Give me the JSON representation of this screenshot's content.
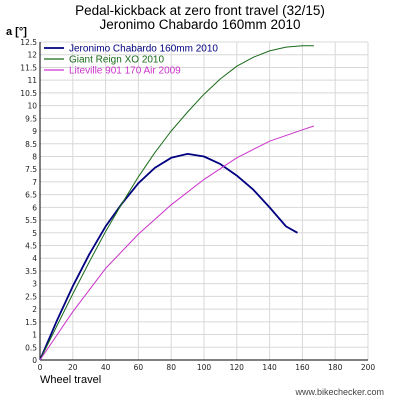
{
  "chart_data": {
    "type": "line",
    "title": "Pedal-kickback at zero front travel (32/15)",
    "subtitle": "Jeronimo Chabardo 160mm 2010",
    "ylabel": "a [°]",
    "xlabel": "Wheel travel",
    "xlim": [
      0,
      200
    ],
    "ylim": [
      0,
      12.5
    ],
    "x_ticks": [
      "0",
      "20",
      "40",
      "60",
      "80",
      "100",
      "120",
      "140",
      "160",
      "180",
      "200"
    ],
    "y_ticks": [
      "0",
      "0.5",
      "1",
      "1.5",
      "2",
      "2.5",
      "3",
      "3.5",
      "4",
      "4.5",
      "5",
      "5.5",
      "6",
      "6.5",
      "7",
      "7.5",
      "8",
      "8.5",
      "9",
      "9.5",
      "10",
      "10.5",
      "11",
      "11.5",
      "12",
      "12.5"
    ],
    "grid": true,
    "legend_position": "top-left",
    "series": [
      {
        "name": "Jeronimo Chabardo 160mm 2010",
        "color": "#000080",
        "x": [
          0,
          10,
          20,
          30,
          40,
          50,
          60,
          70,
          80,
          90,
          100,
          110,
          120,
          130,
          140,
          150,
          157
        ],
        "y": [
          0,
          1.5,
          2.9,
          4.15,
          5.25,
          6.15,
          6.95,
          7.55,
          7.95,
          8.1,
          8.0,
          7.7,
          7.25,
          6.7,
          6.0,
          5.25,
          5.0
        ]
      },
      {
        "name": "Giant Reign XO 2010",
        "color": "#1a6b1a",
        "x": [
          0,
          10,
          20,
          30,
          40,
          50,
          60,
          70,
          80,
          90,
          100,
          110,
          120,
          130,
          140,
          150,
          160,
          167
        ],
        "y": [
          0,
          1.3,
          2.6,
          3.85,
          5.05,
          6.15,
          7.2,
          8.15,
          9.0,
          9.75,
          10.45,
          11.05,
          11.55,
          11.9,
          12.15,
          12.3,
          12.35,
          12.35
        ]
      },
      {
        "name": "Liteville 901 170 Air 2009",
        "color": "#cc33cc",
        "x": [
          0,
          20,
          40,
          60,
          80,
          100,
          120,
          140,
          160,
          167
        ],
        "y": [
          0,
          1.9,
          3.6,
          4.95,
          6.1,
          7.1,
          7.95,
          8.6,
          9.05,
          9.2
        ]
      }
    ]
  },
  "watermark": "www.bikechecker.com"
}
